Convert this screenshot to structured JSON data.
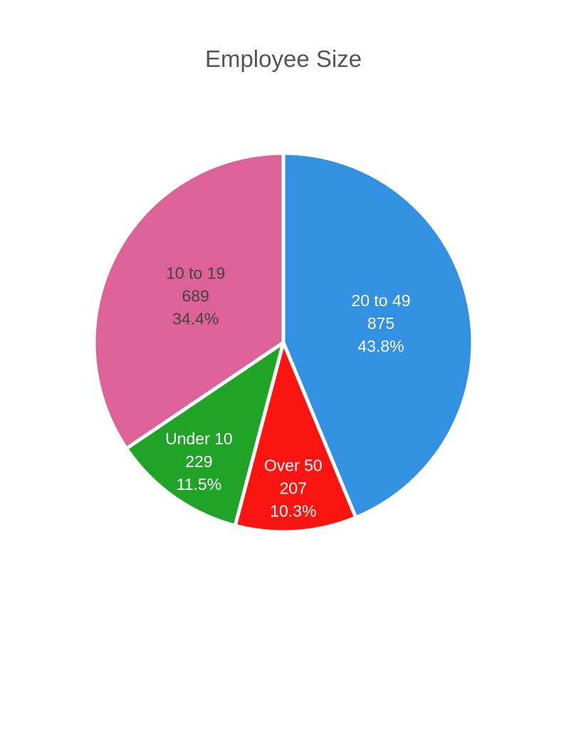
{
  "page": {
    "background_color": "#ffffff"
  },
  "chart_data": {
    "type": "pie",
    "title": "Employee Size",
    "title_color": "#555555",
    "legend": "none",
    "start_angle": "top",
    "direction": "clockwise",
    "slice_border_color": "#ffffff",
    "label_format": "name, value, percent",
    "slices": [
      {
        "label": "20 to 49",
        "value": 875,
        "pct_label": "43.8%",
        "color": "#3291e1",
        "label_color": "#ffffff"
      },
      {
        "label": "Over 50",
        "value": 207,
        "pct_label": "10.3%",
        "color": "#fb1410",
        "label_color": "#ffffff"
      },
      {
        "label": "Under 10",
        "value": 229,
        "pct_label": "11.5%",
        "color": "#20a427",
        "label_color": "#ffffff"
      },
      {
        "label": "10 to 19",
        "value": 689,
        "pct_label": "34.4%",
        "color": "#dc6298",
        "label_color": "#444444"
      }
    ]
  }
}
